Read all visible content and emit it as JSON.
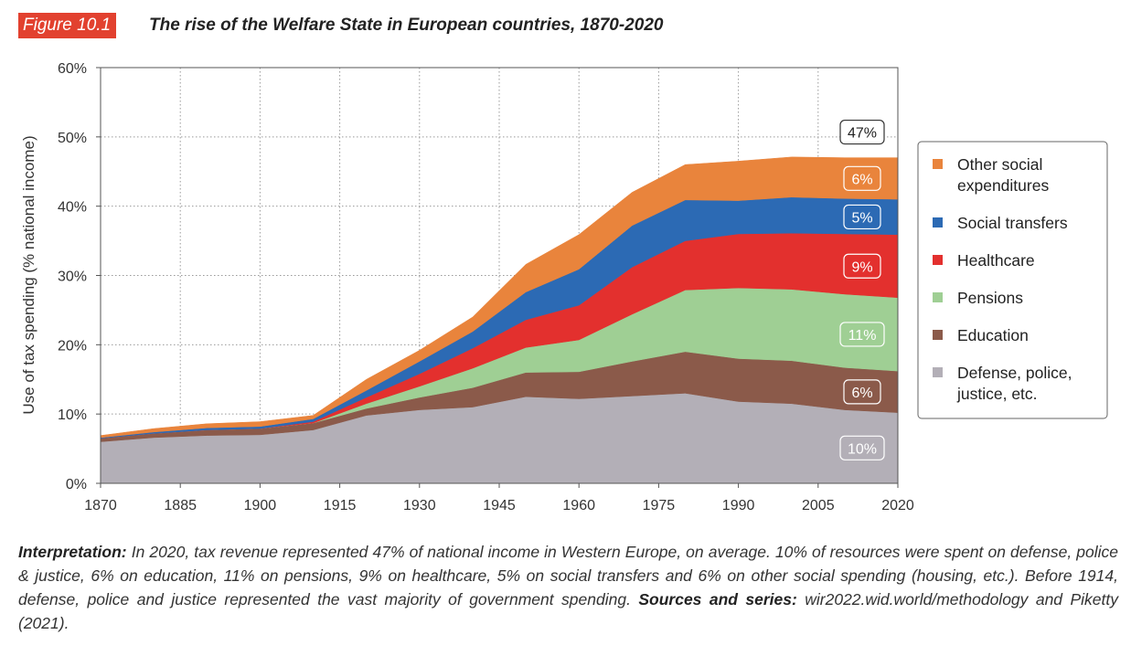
{
  "header": {
    "figure_label": "Figure 10.1",
    "title": "The rise of the Welfare State in European countries, 1870-2020"
  },
  "chart_data": {
    "type": "area",
    "stacked": true,
    "title": "The rise of the Welfare State in European countries, 1870-2020",
    "xlabel": "",
    "ylabel": "Use of tax spending (% national income)",
    "xlim": [
      1870,
      2020
    ],
    "ylim": [
      0,
      60
    ],
    "x_ticks": [
      "1870",
      "1885",
      "1900",
      "1915",
      "1930",
      "1945",
      "1960",
      "1975",
      "1990",
      "2005",
      "2020"
    ],
    "y_ticks": [
      "0%",
      "10%",
      "20%",
      "30%",
      "40%",
      "50%",
      "60%"
    ],
    "grid": true,
    "legend_position": "right",
    "x": [
      1870,
      1880,
      1890,
      1900,
      1910,
      1920,
      1930,
      1940,
      1950,
      1960,
      1970,
      1980,
      1990,
      2000,
      2010,
      2020
    ],
    "series": [
      {
        "name": "Defense, police, justice, etc.",
        "color": "#b3afb7",
        "values": [
          6.0,
          6.6,
          6.9,
          7.0,
          7.7,
          9.8,
          10.6,
          11.0,
          12.5,
          12.2,
          12.6,
          13.0,
          11.8,
          11.5,
          10.6,
          10.2
        ]
      },
      {
        "name": "Education",
        "color": "#8b5a4a",
        "values": [
          0.5,
          0.6,
          0.8,
          0.9,
          1.0,
          1.0,
          1.8,
          2.8,
          3.5,
          3.9,
          5.0,
          6.0,
          6.2,
          6.2,
          6.1,
          6.0
        ]
      },
      {
        "name": "Pensions",
        "color": "#9fcf94",
        "values": [
          0.0,
          0.0,
          0.0,
          0.0,
          0.0,
          0.7,
          1.6,
          2.8,
          3.6,
          4.6,
          6.8,
          8.9,
          10.2,
          10.3,
          10.6,
          10.6
        ]
      },
      {
        "name": "Healthcare",
        "color": "#e3302e",
        "values": [
          0.0,
          0.0,
          0.0,
          0.0,
          0.2,
          0.9,
          1.8,
          2.9,
          4.0,
          5.0,
          6.8,
          7.1,
          7.8,
          8.1,
          8.7,
          9.1
        ]
      },
      {
        "name": "Social transfers",
        "color": "#2c6ab4",
        "values": [
          0.1,
          0.2,
          0.3,
          0.3,
          0.4,
          1.0,
          1.8,
          2.4,
          4.0,
          5.2,
          6.0,
          5.9,
          4.8,
          5.2,
          5.1,
          5.1
        ]
      },
      {
        "name": "Other social expenditures",
        "color": "#e9843c",
        "values": [
          0.3,
          0.5,
          0.6,
          0.7,
          0.5,
          1.6,
          1.6,
          2.1,
          4.0,
          5.0,
          4.8,
          5.1,
          5.7,
          5.8,
          5.9,
          6.0
        ]
      }
    ],
    "data_labels": [
      {
        "text": "10%",
        "series": "Defense, police, justice, etc.",
        "year": 2020
      },
      {
        "text": "6%",
        "series": "Education",
        "year": 2020
      },
      {
        "text": "11%",
        "series": "Pensions",
        "year": 2020
      },
      {
        "text": "9%",
        "series": "Healthcare",
        "year": 2020
      },
      {
        "text": "5%",
        "series": "Social transfers",
        "year": 2020
      },
      {
        "text": "6%",
        "series": "Other social expenditures",
        "year": 2020
      },
      {
        "text": "47%",
        "series": "Total",
        "year": 2020
      }
    ]
  },
  "caption": {
    "interpretation_label": "Interpretation:",
    "interpretation_text": " In 2020, tax revenue represented 47% of national income in Western Europe, on average. 10% of resources were spent on defense, police & justice, 6% on education, 11% on pensions, 9% on healthcare, 5% on social transfers and 6% on other social spending (housing, etc.). Before 1914, defense, police and justice represented the vast majority of government spending. ",
    "sources_label": "Sources and series:",
    "sources_text": " wir2022.wid.world/methodology and Piketty (2021)."
  }
}
